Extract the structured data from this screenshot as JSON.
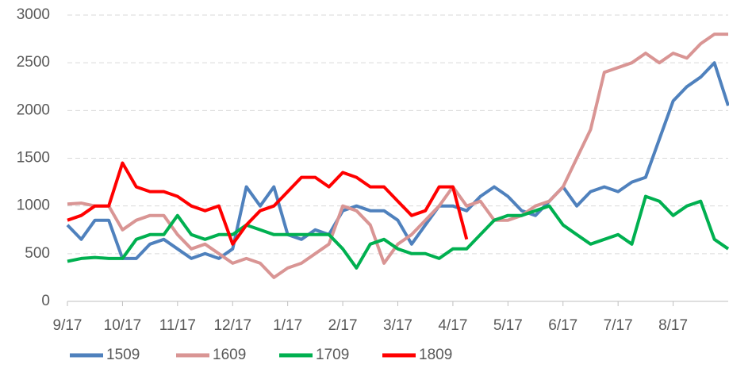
{
  "chart_data": {
    "type": "line",
    "x": [
      0,
      0.25,
      0.5,
      0.75,
      1,
      1.25,
      1.5,
      1.75,
      2,
      2.25,
      2.5,
      2.75,
      3,
      3.25,
      3.5,
      3.75,
      4,
      4.25,
      4.5,
      4.75,
      5,
      5.25,
      5.5,
      5.75,
      6,
      6.25,
      6.5,
      6.75,
      7,
      7.25,
      7.5,
      7.75,
      8,
      8.25,
      8.5,
      8.75,
      9,
      9.25,
      9.5,
      9.75,
      10,
      10.25,
      10.5,
      10.75,
      11,
      11.25,
      11.5,
      11.75,
      12
    ],
    "xlim": [
      0,
      12
    ],
    "xticks": [
      {
        "value": 0,
        "label": "9/17"
      },
      {
        "value": 1,
        "label": "10/17"
      },
      {
        "value": 2,
        "label": "11/17"
      },
      {
        "value": 3,
        "label": "12/17"
      },
      {
        "value": 4,
        "label": "1/17"
      },
      {
        "value": 5,
        "label": "2/17"
      },
      {
        "value": 6,
        "label": "3/17"
      },
      {
        "value": 7,
        "label": "4/17"
      },
      {
        "value": 8,
        "label": "5/17"
      },
      {
        "value": 9,
        "label": "6/17"
      },
      {
        "value": 10,
        "label": "7/17"
      },
      {
        "value": 11,
        "label": "8/17"
      }
    ],
    "ylim": [
      0,
      3000
    ],
    "yticks": [
      0,
      500,
      1000,
      1500,
      2000,
      2500,
      3000
    ],
    "grid": true,
    "legend": "bottom",
    "series": [
      {
        "name": "1509",
        "color": "#4f81bd",
        "values": [
          800,
          650,
          850,
          850,
          450,
          450,
          600,
          650,
          550,
          450,
          500,
          450,
          550,
          1200,
          1000,
          1200,
          700,
          650,
          750,
          700,
          950,
          1000,
          950,
          950,
          850,
          600,
          800,
          1000,
          1000,
          950,
          1100,
          1200,
          1100,
          950,
          900,
          1050,
          1200,
          1000,
          1150,
          1200,
          1150,
          1250,
          1300,
          1700,
          2100,
          2250,
          2350,
          2500,
          2050
        ]
      },
      {
        "name": "1609",
        "color": "#d99594",
        "values": [
          1020,
          1030,
          1000,
          1000,
          750,
          850,
          900,
          900,
          700,
          550,
          600,
          500,
          400,
          450,
          400,
          250,
          350,
          400,
          500,
          600,
          1000,
          950,
          800,
          400,
          600,
          700,
          850,
          1000,
          1200,
          1000,
          1050,
          850,
          850,
          900,
          1000,
          1050,
          1200,
          1500,
          1800,
          2400,
          2450,
          2500,
          2600,
          2500,
          2600,
          2550,
          2700,
          2800,
          2800
        ]
      },
      {
        "name": "1709",
        "color": "#00b050",
        "values": [
          420,
          450,
          460,
          450,
          450,
          650,
          700,
          700,
          900,
          700,
          650,
          700,
          700,
          800,
          750,
          700,
          700,
          700,
          700,
          700,
          550,
          350,
          600,
          650,
          550,
          500,
          500,
          450,
          550,
          550,
          700,
          850,
          900,
          900,
          950,
          1000,
          800,
          700,
          600,
          650,
          700,
          600,
          1100,
          1050,
          900,
          1000,
          1050,
          650,
          550
        ]
      },
      {
        "name": "1809",
        "color": "#ff0000",
        "values": [
          850,
          900,
          1000,
          1000,
          1450,
          1200,
          1150,
          1150,
          1100,
          1000,
          950,
          1000,
          600,
          800,
          950,
          1000,
          1150,
          1300,
          1300,
          1200,
          1350,
          1300,
          1200,
          1200,
          1050,
          900,
          950,
          1200,
          1200,
          650,
          null,
          null,
          null,
          null,
          null,
          null,
          null,
          null,
          null,
          null,
          null,
          null,
          null,
          null,
          null,
          null,
          null,
          null,
          null
        ]
      }
    ]
  }
}
